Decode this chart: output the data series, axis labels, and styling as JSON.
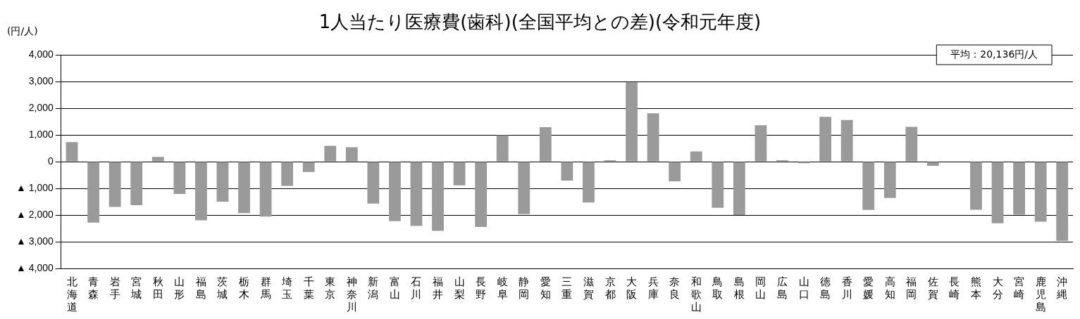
{
  "chart_data": {
    "type": "bar",
    "title": "1人当たり医療費(歯科)(全国平均との差)(令和元年度)",
    "ylabel": "(円/人)",
    "categories": [
      "北海道",
      "青森",
      "岩手",
      "宮城",
      "秋田",
      "山形",
      "福島",
      "茨城",
      "栃木",
      "群馬",
      "埼玉",
      "千葉",
      "東京",
      "神奈川",
      "新潟",
      "富山",
      "石川",
      "福井",
      "山梨",
      "長野",
      "岐阜",
      "静岡",
      "愛知",
      "三重",
      "滋賀",
      "京都",
      "大阪",
      "兵庫",
      "奈良",
      "和歌山",
      "鳥取",
      "島根",
      "岡山",
      "広島",
      "山口",
      "徳島",
      "香川",
      "愛媛",
      "高知",
      "福岡",
      "佐賀",
      "長崎",
      "熊本",
      "大分",
      "宮崎",
      "鹿児島",
      "沖縄"
    ],
    "values": [
      730,
      -2280,
      -1700,
      -1630,
      180,
      -1210,
      -2200,
      -1500,
      -1930,
      -2060,
      -910,
      -390,
      590,
      540,
      -1570,
      -2230,
      -2410,
      -2590,
      -890,
      -2450,
      990,
      -1970,
      1290,
      -710,
      -1530,
      50,
      2970,
      1810,
      -740,
      380,
      -1730,
      -2000,
      1360,
      50,
      -60,
      1680,
      1560,
      -1810,
      -1360,
      1300,
      -160,
      null,
      -1800,
      -2310,
      -1990,
      -2250,
      -2970
    ],
    "color": "#9a9a9a",
    "ylim": [
      -4000,
      4000
    ],
    "yticks": [
      {
        "value": -4000,
        "label": "▲ 4,000"
      },
      {
        "value": -3000,
        "label": "▲ 3,000"
      },
      {
        "value": -2000,
        "label": "▲ 2,000"
      },
      {
        "value": -1000,
        "label": "▲ 1,000"
      },
      0,
      {
        "value": 1000,
        "label": "1,000"
      },
      {
        "value": 2000,
        "label": "2,000"
      },
      {
        "value": 3000,
        "label": "3,000"
      },
      {
        "value": 4000,
        "label": "4,000"
      }
    ],
    "grid": "y",
    "legend": false,
    "annotations": [
      "平均：20,136円/人"
    ]
  }
}
